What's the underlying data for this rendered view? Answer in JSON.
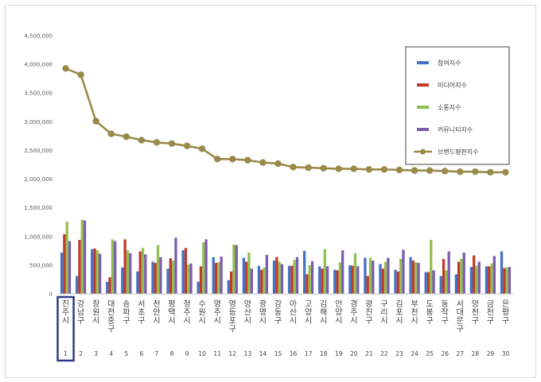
{
  "chart_data": {
    "type": "bar",
    "title": "",
    "xlabel": "",
    "ylabel": "",
    "ylim": [
      0,
      4500000
    ],
    "yticks": [
      "0",
      "500,000",
      "1,000,000",
      "1,500,000",
      "2,000,000",
      "2,500,000",
      "3,000,000",
      "3,500,000",
      "4,000,000",
      "4,500,000"
    ],
    "grid": false,
    "legend_position": "top-right",
    "categories": [
      "진주시",
      "강남구",
      "창원시",
      "대전 중구",
      "송파구",
      "서초구",
      "천안시",
      "평택시",
      "청주시",
      "수원시",
      "영주시",
      "영등포구",
      "양산시",
      "광명시",
      "강동구",
      "아산시",
      "고양시",
      "김해시",
      "안양시",
      "경주시",
      "광진구",
      "구리시",
      "김포시",
      "부천시",
      "도봉구",
      "동작구",
      "서대문구",
      "양천구",
      "금천구",
      "은평구"
    ],
    "index_labels": [
      "1",
      "2",
      "3",
      "4",
      "5",
      "6",
      "7",
      "8",
      "9",
      "10",
      "11",
      "12",
      "13",
      "14",
      "15",
      "16",
      "17",
      "18",
      "19",
      "20",
      "21",
      "22",
      "23",
      "24",
      "25",
      "26",
      "27",
      "28",
      "29",
      "30"
    ],
    "highlight_index": 0,
    "series": [
      {
        "name": "참여지수",
        "type": "bar",
        "color": "#4472C4",
        "values": [
          720000,
          310000,
          780000,
          210000,
          460000,
          390000,
          560000,
          440000,
          760000,
          210000,
          640000,
          240000,
          630000,
          490000,
          580000,
          490000,
          750000,
          480000,
          420000,
          500000,
          630000,
          520000,
          420000,
          640000,
          380000,
          310000,
          340000,
          470000,
          480000,
          740000
        ]
      },
      {
        "name": "미디어지수",
        "type": "bar",
        "color": "#C0392B",
        "values": [
          1040000,
          940000,
          790000,
          290000,
          950000,
          740000,
          540000,
          620000,
          800000,
          480000,
          540000,
          390000,
          560000,
          420000,
          640000,
          490000,
          340000,
          440000,
          410000,
          490000,
          310000,
          440000,
          390000,
          580000,
          380000,
          610000,
          560000,
          670000,
          480000,
          450000
        ]
      },
      {
        "name": "소통지수",
        "type": "bar",
        "color": "#92C050",
        "values": [
          1260000,
          1290000,
          760000,
          950000,
          760000,
          800000,
          850000,
          580000,
          510000,
          900000,
          550000,
          860000,
          720000,
          460000,
          560000,
          590000,
          500000,
          780000,
          550000,
          710000,
          630000,
          560000,
          610000,
          550000,
          940000,
          410000,
          610000,
          490000,
          530000,
          460000
        ]
      },
      {
        "name": "커뮤니티지수",
        "type": "bar",
        "color": "#7B5CB0",
        "values": [
          920000,
          1280000,
          700000,
          920000,
          710000,
          690000,
          640000,
          980000,
          530000,
          950000,
          650000,
          850000,
          440000,
          680000,
          520000,
          640000,
          570000,
          480000,
          760000,
          480000,
          580000,
          630000,
          770000,
          540000,
          410000,
          740000,
          720000,
          560000,
          660000,
          470000
        ]
      },
      {
        "name": "브랜드평판지수",
        "type": "line",
        "color": "#9A8A4A",
        "values": [
          3930000,
          3820000,
          3010000,
          2790000,
          2740000,
          2680000,
          2640000,
          2620000,
          2580000,
          2530000,
          2350000,
          2350000,
          2330000,
          2290000,
          2270000,
          2210000,
          2200000,
          2190000,
          2180000,
          2180000,
          2170000,
          2170000,
          2160000,
          2150000,
          2150000,
          2140000,
          2130000,
          2130000,
          2120000,
          2120000
        ]
      }
    ]
  }
}
